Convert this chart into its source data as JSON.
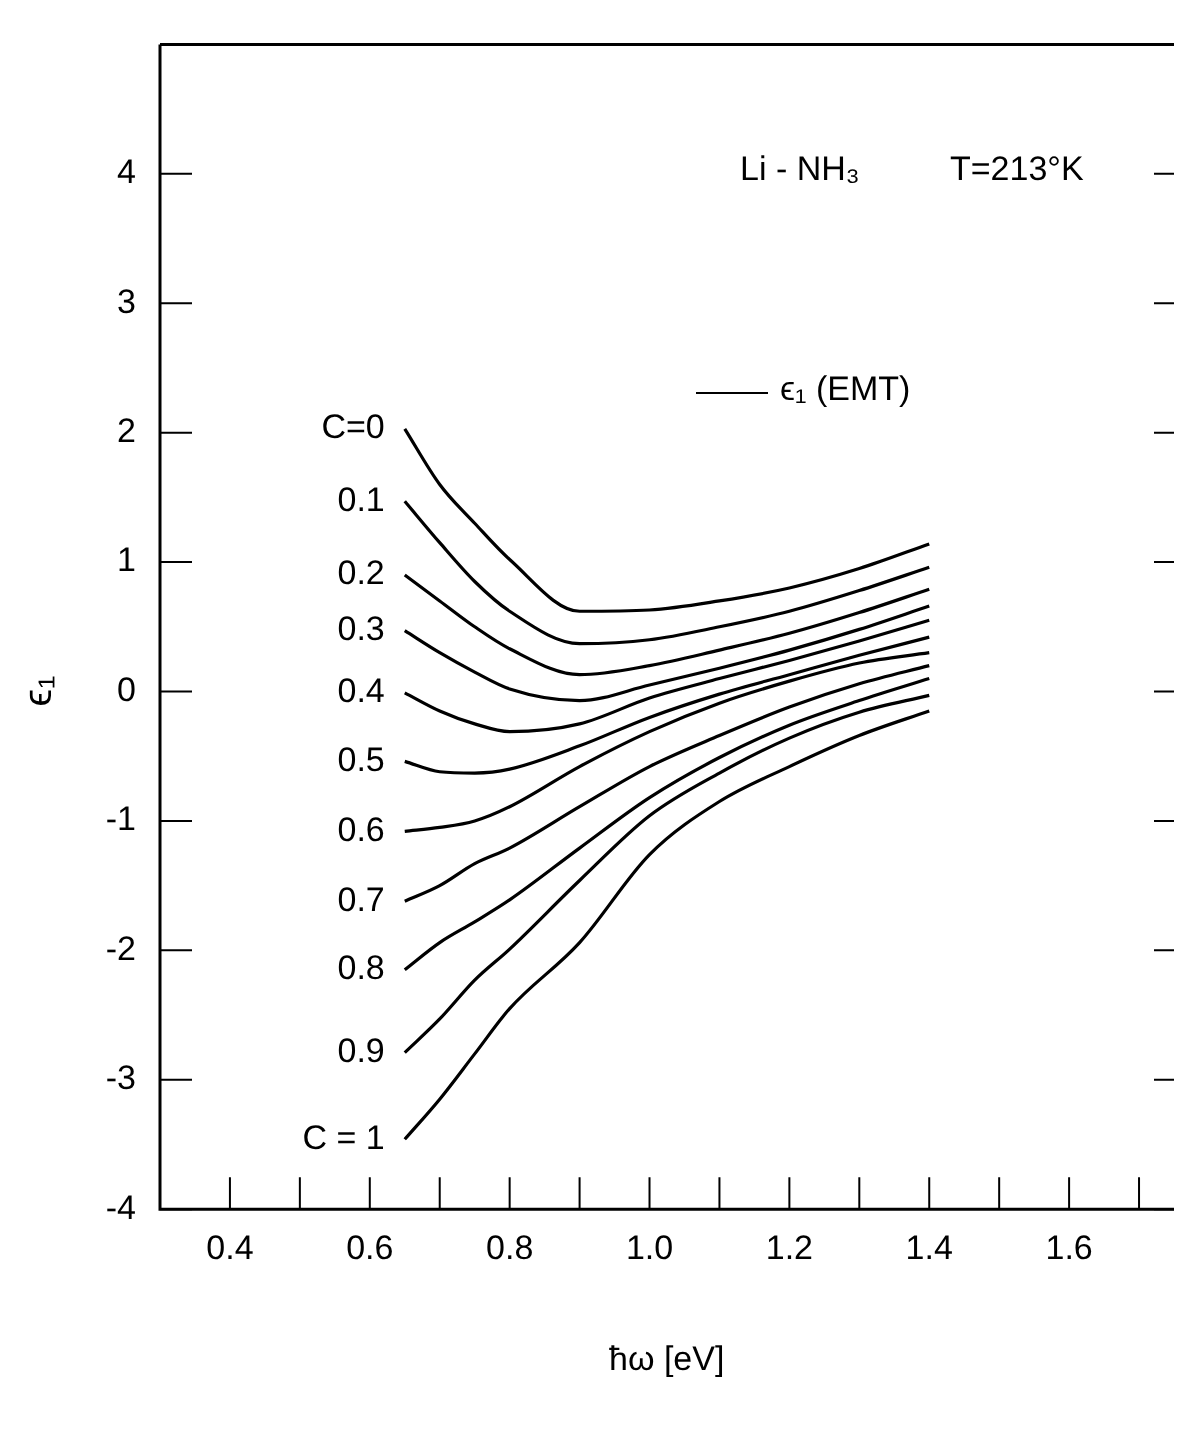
{
  "chart_data": {
    "type": "line",
    "xlabel": "ħω [eV]",
    "ylabel": "ϵ₁",
    "x": [
      0.65,
      0.7,
      0.75,
      0.8,
      0.9,
      1.0,
      1.1,
      1.2,
      1.3,
      1.4
    ],
    "series": [
      {
        "name": "C=0",
        "color": "#000000",
        "values": [
          2.03,
          1.6,
          1.3,
          1.02,
          0.62,
          0.63,
          0.7,
          0.8,
          0.95,
          1.14
        ]
      },
      {
        "name": "0.1",
        "color": "#000000",
        "values": [
          1.47,
          1.15,
          0.85,
          0.62,
          0.37,
          0.4,
          0.5,
          0.62,
          0.78,
          0.96
        ]
      },
      {
        "name": "0.2",
        "color": "#000000",
        "values": [
          0.9,
          0.7,
          0.5,
          0.33,
          0.13,
          0.2,
          0.32,
          0.45,
          0.61,
          0.79
        ]
      },
      {
        "name": "0.3",
        "color": "#000000",
        "values": [
          0.47,
          0.3,
          0.15,
          0.02,
          -0.07,
          0.05,
          0.18,
          0.32,
          0.48,
          0.66
        ]
      },
      {
        "name": "0.4",
        "color": "#000000",
        "values": [
          -0.01,
          -0.15,
          -0.25,
          -0.31,
          -0.25,
          -0.05,
          0.1,
          0.24,
          0.39,
          0.55
        ]
      },
      {
        "name": "0.5",
        "color": "#000000",
        "values": [
          -0.54,
          -0.62,
          -0.63,
          -0.6,
          -0.42,
          -0.2,
          -0.02,
          0.13,
          0.28,
          0.42
        ]
      },
      {
        "name": "0.6",
        "color": "#000000",
        "values": [
          -1.08,
          -1.05,
          -1.0,
          -0.89,
          -0.58,
          -0.31,
          -0.09,
          0.08,
          0.22,
          0.3
        ]
      },
      {
        "name": "0.7",
        "color": "#000000",
        "values": [
          -1.62,
          -1.5,
          -1.33,
          -1.21,
          -0.89,
          -0.58,
          -0.34,
          -0.12,
          0.06,
          0.2
        ]
      },
      {
        "name": "0.8",
        "color": "#000000",
        "values": [
          -2.15,
          -1.94,
          -1.78,
          -1.61,
          -1.21,
          -0.82,
          -0.51,
          -0.26,
          -0.07,
          0.1
        ]
      },
      {
        "name": "0.9",
        "color": "#000000",
        "values": [
          -2.79,
          -2.53,
          -2.23,
          -1.99,
          -1.46,
          -0.96,
          -0.63,
          -0.36,
          -0.16,
          -0.03
        ]
      },
      {
        "name": "C = 1",
        "color": "#000000",
        "values": [
          -3.46,
          -3.15,
          -2.8,
          -2.45,
          -1.94,
          -1.26,
          -0.85,
          -0.58,
          -0.34,
          -0.15
        ]
      }
    ],
    "xlim": [
      0.3,
      1.75
    ],
    "xticks": [
      {
        "value": 0.3,
        "label": null
      },
      0.4,
      {
        "value": 0.5,
        "label": null
      },
      0.6,
      {
        "value": 0.7,
        "label": null
      },
      0.8,
      {
        "value": 0.9,
        "label": null
      },
      {
        "value": 1.0,
        "label": "1.0"
      },
      {
        "value": 1.1,
        "label": null
      },
      1.2,
      {
        "value": 1.3,
        "label": null
      },
      1.4,
      {
        "value": 1.5,
        "label": null
      },
      1.6,
      {
        "value": 1.7,
        "label": null
      }
    ],
    "ylim": [
      -4,
      5
    ],
    "yticks": [
      -4,
      -3,
      -2,
      -1,
      0,
      1,
      2,
      3,
      4
    ],
    "annotations": [
      "Li - NH₃",
      "T=213°K",
      "ϵ₁  (EMT)"
    ],
    "grid": false,
    "legend": false,
    "marker": "none",
    "line_style": "solid"
  }
}
